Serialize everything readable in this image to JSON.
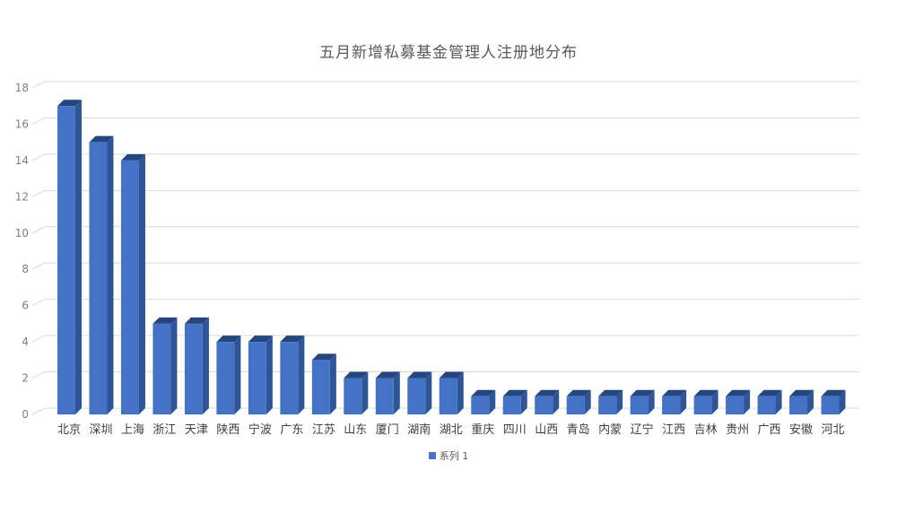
{
  "chart_data": {
    "type": "bar",
    "style": "3d-column",
    "title": "五月新增私募基金管理人注册地分布",
    "categories": [
      "北京",
      "深圳",
      "上海",
      "浙江",
      "天津",
      "陕西",
      "宁波",
      "广东",
      "江苏",
      "山东",
      "厦门",
      "湖南",
      "湖北",
      "重庆",
      "四川",
      "山西",
      "青岛",
      "内蒙",
      "辽宁",
      "江西",
      "吉林",
      "贵州",
      "广西",
      "安徽",
      "河北"
    ],
    "series": [
      {
        "name": "系列 1",
        "values": [
          17,
          15,
          14,
          5,
          5,
          4,
          4,
          4,
          3,
          2,
          2,
          2,
          2,
          1,
          1,
          1,
          1,
          1,
          1,
          1,
          1,
          1,
          1,
          1,
          1
        ]
      }
    ],
    "ylabel": "",
    "xlabel": "",
    "ylim": [
      0,
      18
    ],
    "yticks": [
      0,
      2,
      4,
      6,
      8,
      10,
      12,
      14,
      16,
      18
    ],
    "grid": true,
    "legend_position": "bottom",
    "colors": {
      "bar_front": "#4472C4",
      "bar_side": "#2E5597",
      "bar_top": "#26457E",
      "gridline": "#D9D9D9",
      "title_text": "#595959",
      "ytick_text": "#7F7F7F",
      "category_text": "#404040",
      "background": "#FFFFFF"
    }
  },
  "legend": {
    "items": [
      {
        "label": "系列 1",
        "color": "#4472C4"
      }
    ]
  }
}
